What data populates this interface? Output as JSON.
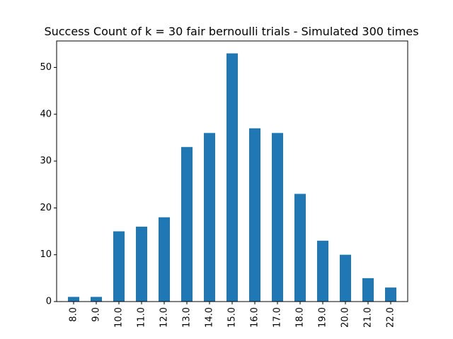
{
  "chart_data": {
    "type": "bar",
    "title": "Success Count of k = 30 fair bernoulli trials - Simulated 300 times",
    "xlabel": "",
    "ylabel": "",
    "categories": [
      "8.0",
      "9.0",
      "10.0",
      "11.0",
      "12.0",
      "13.0",
      "14.0",
      "15.0",
      "16.0",
      "17.0",
      "18.0",
      "19.0",
      "20.0",
      "21.0",
      "22.0"
    ],
    "values": [
      1,
      1,
      15,
      16,
      18,
      33,
      36,
      53,
      37,
      36,
      23,
      13,
      10,
      5,
      3
    ],
    "ylim": [
      0,
      55.65
    ],
    "yticks": [
      0,
      10,
      20,
      30,
      40,
      50
    ],
    "grid": false,
    "bar_color": "#1f77b4"
  }
}
